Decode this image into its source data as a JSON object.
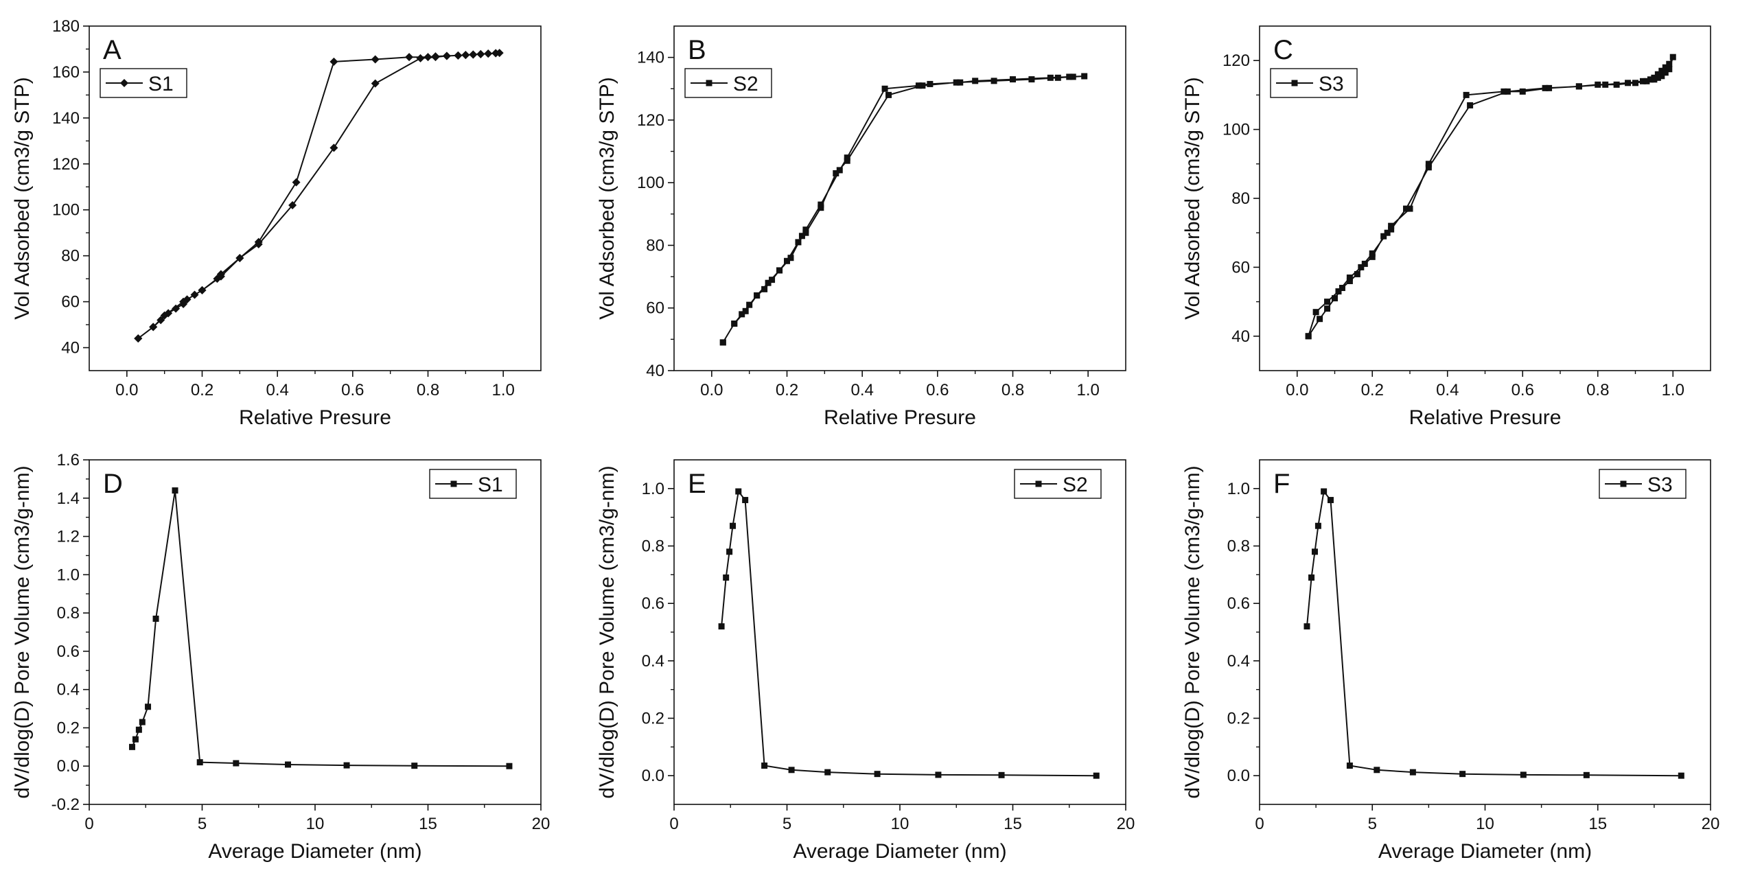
{
  "chart_data": [
    {
      "id": "A",
      "type": "line",
      "panel_label": "A",
      "legend_position": "top-left",
      "xlabel": "Relative Presure",
      "ylabel": "Vol Adsorbed (cm3/g STP)",
      "xlim": [
        -0.1,
        1.1
      ],
      "ylim": [
        30,
        180
      ],
      "xticks": [
        0.0,
        0.2,
        0.4,
        0.6,
        0.8,
        1.0
      ],
      "xtick_labels": [
        "0.0",
        "0.2",
        "0.4",
        "0.6",
        "0.8",
        "1.0"
      ],
      "yticks": [
        40,
        60,
        80,
        100,
        120,
        140,
        160,
        180
      ],
      "ytick_labels": [
        "40",
        "60",
        "80",
        "100",
        "120",
        "140",
        "160",
        "180"
      ],
      "series": [
        {
          "name": "S1",
          "marker": "diamond",
          "x": [
            0.03,
            0.07,
            0.09,
            0.11,
            0.13,
            0.15,
            0.16,
            0.18,
            0.2,
            0.24,
            0.25,
            0.3,
            0.35,
            0.44,
            0.55,
            0.66,
            0.78,
            0.82,
            0.85,
            0.88,
            0.9,
            0.92,
            0.94,
            0.96,
            0.98,
            0.99,
            0.98,
            0.96,
            0.94,
            0.92,
            0.9,
            0.88,
            0.85,
            0.82,
            0.8,
            0.75,
            0.66,
            0.55,
            0.45,
            0.35,
            0.3,
            0.25,
            0.2,
            0.15,
            0.1,
            0.07,
            0.03
          ],
          "y": [
            44,
            49,
            52,
            55,
            57,
            59,
            61,
            63,
            65,
            70,
            72,
            79,
            85,
            102,
            127,
            155,
            166,
            166.5,
            167,
            167.2,
            167.4,
            167.6,
            167.8,
            168,
            168.2,
            168.3,
            168.2,
            168,
            167.8,
            167.6,
            167.4,
            167.2,
            167,
            166.8,
            166.5,
            166.5,
            165.5,
            164.5,
            112,
            86,
            79,
            71,
            65,
            60,
            54,
            49,
            44
          ]
        }
      ]
    },
    {
      "id": "B",
      "type": "line",
      "panel_label": "B",
      "legend_position": "top-left",
      "xlabel": "Relative Presure",
      "ylabel": "Vol Adsorbed (cm3/g STP)",
      "xlim": [
        -0.1,
        1.1
      ],
      "ylim": [
        40,
        150
      ],
      "xticks": [
        0.0,
        0.2,
        0.4,
        0.6,
        0.8,
        1.0
      ],
      "xtick_labels": [
        "0.0",
        "0.2",
        "0.4",
        "0.6",
        "0.8",
        "1.0"
      ],
      "yticks": [
        40,
        60,
        80,
        100,
        120,
        140
      ],
      "ytick_labels": [
        "40",
        "60",
        "80",
        "100",
        "120",
        "140"
      ],
      "series": [
        {
          "name": "S2",
          "marker": "square",
          "x": [
            0.03,
            0.06,
            0.08,
            0.1,
            0.12,
            0.14,
            0.16,
            0.18,
            0.2,
            0.23,
            0.25,
            0.29,
            0.33,
            0.36,
            0.47,
            0.56,
            0.65,
            0.75,
            0.85,
            0.92,
            0.96,
            0.99,
            0.95,
            0.9,
            0.8,
            0.7,
            0.66,
            0.58,
            0.55,
            0.46,
            0.36,
            0.34,
            0.29,
            0.25,
            0.24,
            0.21,
            0.18,
            0.15,
            0.12,
            0.09,
            0.06,
            0.03
          ],
          "y": [
            49,
            55,
            58,
            61,
            64,
            66,
            69,
            72,
            75,
            81,
            84,
            92,
            103,
            107,
            128,
            131,
            132,
            132.5,
            133,
            133.5,
            133.8,
            134,
            133.8,
            133.5,
            133,
            132.5,
            132,
            131.5,
            131,
            130,
            108,
            104,
            93,
            85,
            83,
            76,
            72,
            68,
            64,
            59,
            55,
            49
          ]
        }
      ]
    },
    {
      "id": "C",
      "type": "line",
      "panel_label": "C",
      "legend_position": "top-left",
      "xlabel": "Relative Presure",
      "ylabel": "Vol Adsorbed (cm3/g STP)",
      "xlim": [
        -0.1,
        1.1
      ],
      "ylim": [
        30,
        130
      ],
      "xticks": [
        0.0,
        0.2,
        0.4,
        0.6,
        0.8,
        1.0
      ],
      "xtick_labels": [
        "0.0",
        "0.2",
        "0.4",
        "0.6",
        "0.8",
        "1.0"
      ],
      "yticks": [
        40,
        60,
        80,
        100,
        120
      ],
      "ytick_labels": [
        "40",
        "60",
        "80",
        "100",
        "120"
      ],
      "series": [
        {
          "name": "S3",
          "marker": "square",
          "x": [
            0.03,
            0.06,
            0.08,
            0.1,
            0.12,
            0.14,
            0.16,
            0.18,
            0.2,
            0.23,
            0.25,
            0.29,
            0.35,
            0.46,
            0.56,
            0.66,
            0.75,
            0.82,
            0.88,
            0.92,
            0.94,
            0.95,
            0.96,
            0.97,
            0.98,
            0.99,
            1.0,
            0.99,
            0.98,
            0.97,
            0.96,
            0.95,
            0.93,
            0.9,
            0.85,
            0.8,
            0.75,
            0.67,
            0.6,
            0.55,
            0.45,
            0.35,
            0.3,
            0.25,
            0.24,
            0.2,
            0.17,
            0.14,
            0.11,
            0.08,
            0.05,
            0.03
          ],
          "y": [
            40,
            45,
            48,
            51,
            54,
            56,
            58,
            61,
            63,
            69,
            71,
            77,
            89,
            107,
            111,
            112,
            112.5,
            113,
            113.5,
            114,
            114.5,
            115,
            116,
            117,
            118,
            119,
            121,
            117.5,
            116.5,
            115.5,
            115,
            114.5,
            114,
            113.5,
            113,
            113,
            112.5,
            112,
            111,
            111,
            110,
            90,
            77,
            72,
            70,
            64,
            60,
            57,
            53,
            50,
            47,
            40
          ]
        }
      ]
    },
    {
      "id": "D",
      "type": "line",
      "panel_label": "D",
      "legend_position": "top-right",
      "xlabel": "Average Diameter (nm)",
      "ylabel": "dV/dlog(D) Pore Volume (cm3/g-nm)",
      "xlim": [
        0,
        20
      ],
      "ylim": [
        -0.2,
        1.6
      ],
      "xticks": [
        0,
        5,
        10,
        15,
        20
      ],
      "xtick_labels": [
        "0",
        "5",
        "10",
        "15",
        "20"
      ],
      "yticks": [
        -0.2,
        0.0,
        0.2,
        0.4,
        0.6,
        0.8,
        1.0,
        1.2,
        1.4,
        1.6
      ],
      "ytick_labels": [
        "-0.2",
        "0.0",
        "0.2",
        "0.4",
        "0.6",
        "0.8",
        "1.0",
        "1.2",
        "1.4",
        "1.6"
      ],
      "series": [
        {
          "name": "S1",
          "marker": "square",
          "x": [
            1.9,
            2.05,
            2.2,
            2.35,
            2.6,
            2.95,
            3.8,
            4.9,
            6.5,
            8.8,
            11.4,
            14.4,
            18.6
          ],
          "y": [
            0.1,
            0.14,
            0.19,
            0.23,
            0.31,
            0.77,
            1.44,
            0.02,
            0.015,
            0.008,
            0.004,
            0.002,
            0.0
          ]
        }
      ]
    },
    {
      "id": "E",
      "type": "line",
      "panel_label": "E",
      "legend_position": "top-right",
      "xlabel": "Average Diameter (nm)",
      "ylabel": "dV/dlog(D) Pore Volume (cm3/g-nm)",
      "xlim": [
        0,
        20
      ],
      "ylim": [
        -0.1,
        1.1
      ],
      "xticks": [
        0,
        5,
        10,
        15,
        20
      ],
      "xtick_labels": [
        "0",
        "5",
        "10",
        "15",
        "20"
      ],
      "yticks": [
        0.0,
        0.2,
        0.4,
        0.6,
        0.8,
        1.0
      ],
      "ytick_labels": [
        "0.0",
        "0.2",
        "0.4",
        "0.6",
        "0.8",
        "1.0"
      ],
      "series": [
        {
          "name": "S2",
          "marker": "square",
          "x": [
            2.1,
            2.3,
            2.45,
            2.6,
            2.85,
            3.15,
            4.0,
            5.2,
            6.8,
            9.0,
            11.7,
            14.5,
            18.7
          ],
          "y": [
            0.52,
            0.69,
            0.78,
            0.87,
            0.99,
            0.96,
            0.035,
            0.02,
            0.012,
            0.006,
            0.003,
            0.002,
            0.0
          ]
        }
      ]
    },
    {
      "id": "F",
      "type": "line",
      "panel_label": "F",
      "legend_position": "top-right",
      "xlabel": "Average Diameter (nm)",
      "ylabel": "dV/dlog(D) Pore Volume (cm3/g-nm)",
      "xlim": [
        0,
        20
      ],
      "ylim": [
        -0.1,
        1.1
      ],
      "xticks": [
        0,
        5,
        10,
        15,
        20
      ],
      "xtick_labels": [
        "0",
        "5",
        "10",
        "15",
        "20"
      ],
      "yticks": [
        0.0,
        0.2,
        0.4,
        0.6,
        0.8,
        1.0
      ],
      "ytick_labels": [
        "0.0",
        "0.2",
        "0.4",
        "0.6",
        "0.8",
        "1.0"
      ],
      "series": [
        {
          "name": "S3",
          "marker": "square",
          "x": [
            2.1,
            2.3,
            2.45,
            2.6,
            2.85,
            3.15,
            4.0,
            5.2,
            6.8,
            9.0,
            11.7,
            14.5,
            18.7
          ],
          "y": [
            0.52,
            0.69,
            0.78,
            0.87,
            0.99,
            0.96,
            0.035,
            0.02,
            0.012,
            0.006,
            0.003,
            0.002,
            0.0
          ]
        }
      ]
    }
  ]
}
